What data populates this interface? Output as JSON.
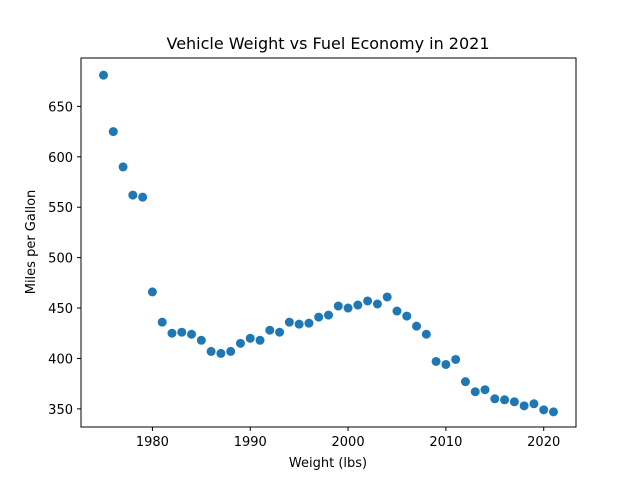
{
  "chart_data": {
    "type": "scatter",
    "title": "Vehicle Weight vs Fuel Economy in 2021",
    "xlabel": "Weight (lbs)",
    "ylabel": "Miles per Gallon",
    "xlim": [
      1972.7,
      2023.3
    ],
    "ylim": [
      332,
      698
    ],
    "xticks": [
      1980,
      1990,
      2000,
      2010,
      2020
    ],
    "yticks": [
      350,
      400,
      450,
      500,
      550,
      600,
      650
    ],
    "color": "#1f77b4",
    "grid": false,
    "x": [
      1975,
      1976,
      1977,
      1978,
      1979,
      1980,
      1981,
      1982,
      1983,
      1984,
      1985,
      1986,
      1987,
      1988,
      1989,
      1990,
      1991,
      1992,
      1993,
      1994,
      1995,
      1996,
      1997,
      1998,
      1999,
      2000,
      2001,
      2002,
      2003,
      2004,
      2005,
      2006,
      2007,
      2008,
      2009,
      2010,
      2011,
      2012,
      2013,
      2014,
      2015,
      2016,
      2017,
      2018,
      2019,
      2020,
      2021
    ],
    "y": [
      681,
      625,
      590,
      562,
      560,
      466,
      436,
      425,
      426,
      424,
      418,
      407,
      405,
      407,
      415,
      420,
      418,
      428,
      426,
      436,
      434,
      435,
      441,
      443,
      452,
      450,
      453,
      457,
      454,
      461,
      447,
      442,
      432,
      424,
      397,
      394,
      399,
      377,
      367,
      369,
      360,
      359,
      357,
      353,
      355,
      349,
      347
    ]
  }
}
